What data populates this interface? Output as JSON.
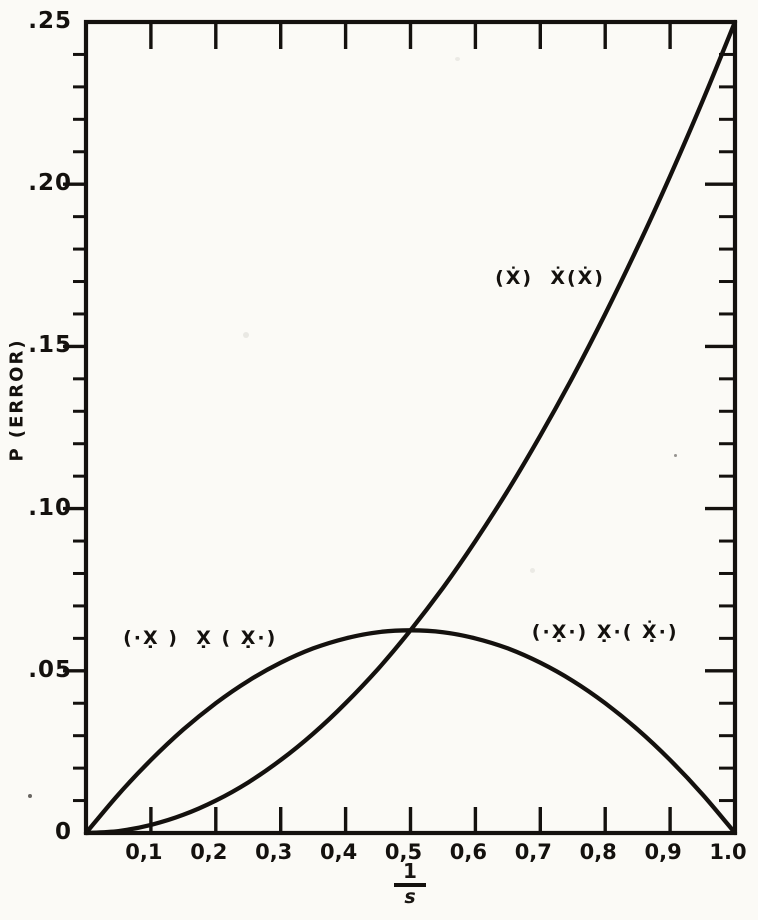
{
  "figure": {
    "background": "#fbfaf6",
    "ink": "#14110e"
  },
  "chart_data": {
    "type": "line",
    "title": "",
    "ylabel": "P (ERROR)",
    "xlabel_fraction": {
      "numerator": "1",
      "denominator": "s"
    },
    "xlim": [
      0,
      1.0
    ],
    "ylim": [
      0,
      0.25
    ],
    "grid": false,
    "frame": "box",
    "x_ticks": {
      "values": [
        0.1,
        0.2,
        0.3,
        0.4,
        0.5,
        0.6,
        0.7,
        0.8,
        0.9,
        1.0
      ],
      "labels": [
        "0,1",
        "0,2",
        "0,3",
        "0,4",
        "0,5",
        "0,6",
        "0,7",
        "0,8",
        "0,9",
        "1.0"
      ]
    },
    "y_ticks": {
      "values": [
        0,
        0.05,
        0.1,
        0.15,
        0.2,
        0.25
      ],
      "labels": [
        "0",
        ".05",
        ".10",
        ".15",
        ".20",
        ".25"
      ],
      "minor_step": 0.01
    },
    "series": [
      {
        "name": "(Ẋ)  Ẋ(Ẋ)",
        "x": [
          0,
          0.05,
          0.1,
          0.15,
          0.2,
          0.25,
          0.3,
          0.35,
          0.4,
          0.45,
          0.5,
          0.55,
          0.6,
          0.65,
          0.7,
          0.75,
          0.8,
          0.85,
          0.9,
          0.95,
          1.0
        ],
        "y": [
          0,
          0.0006,
          0.0025,
          0.0056,
          0.01,
          0.0156,
          0.0225,
          0.0306,
          0.04,
          0.0506,
          0.0625,
          0.0756,
          0.09,
          0.1056,
          0.1225,
          0.1406,
          0.16,
          0.1806,
          0.2025,
          0.2256,
          0.25
        ]
      },
      {
        "name": "(·X̣)  X̣(X̣·)",
        "x": [
          0,
          0.05,
          0.1,
          0.15,
          0.2,
          0.25,
          0.3,
          0.35,
          0.4,
          0.45,
          0.5,
          0.55,
          0.6,
          0.65,
          0.7,
          0.75,
          0.8,
          0.85,
          0.9,
          0.95,
          1.0
        ],
        "y": [
          0,
          0.0119,
          0.0225,
          0.0319,
          0.04,
          0.0469,
          0.0525,
          0.0569,
          0.06,
          0.0619,
          0.0625,
          0.0619,
          0.06,
          0.0569,
          0.0525,
          0.0469,
          0.04,
          0.0319,
          0.0225,
          0.0119,
          0
        ]
      }
    ],
    "annotations": [
      {
        "text": "(Ẋ)  Ẋ(Ẋ)",
        "x": 0.715,
        "y": 0.171
      },
      {
        "text": "(·X̣ )  X̣ ( X̣·)",
        "x": 0.176,
        "y": 0.06
      },
      {
        "text": "(·X̣·) X̣·( Ẋ̣·)",
        "x": 0.8,
        "y": 0.062
      }
    ]
  }
}
